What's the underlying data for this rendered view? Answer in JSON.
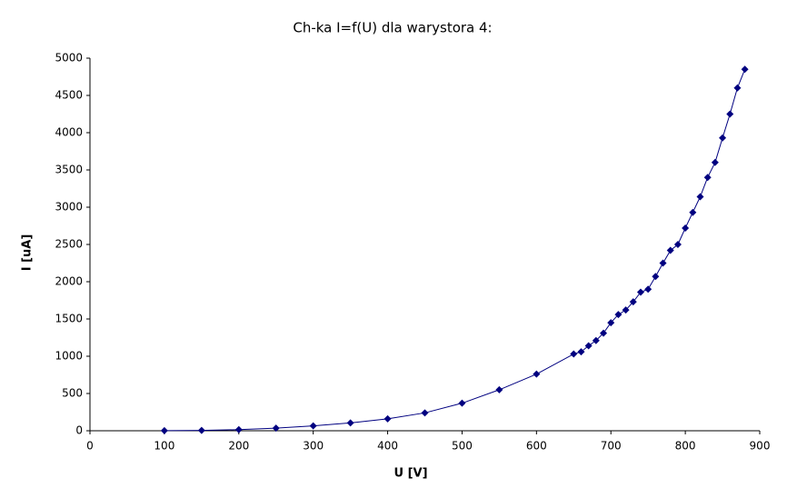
{
  "chart_data": {
    "type": "scatter",
    "title": "Ch-ka I=f(U) dla warystora 4:",
    "x_label": "U [V]",
    "y_label": "I [uA]",
    "xlim": [
      0,
      900
    ],
    "xticks": [
      0,
      100,
      200,
      300,
      400,
      500,
      600,
      700,
      800,
      900
    ],
    "ylim": [
      0,
      5000
    ],
    "yticks": [
      0,
      500,
      1000,
      1500,
      2000,
      2500,
      3000,
      3500,
      4000,
      4500,
      5000
    ],
    "grid": false,
    "series": [
      {
        "color": "#000080",
        "x": [
          100,
          150,
          200,
          250,
          300,
          350,
          400,
          450,
          500,
          550,
          600,
          650,
          660,
          670,
          680,
          690,
          700,
          710,
          720,
          730,
          740,
          750,
          760,
          770,
          780,
          790,
          800,
          810,
          820,
          830,
          840,
          850,
          860,
          870,
          880
        ],
        "values": [
          2,
          5,
          15,
          35,
          65,
          105,
          160,
          240,
          370,
          550,
          760,
          1030,
          1060,
          1140,
          1210,
          1310,
          1450,
          1560,
          1620,
          1730,
          1860,
          1900,
          2070,
          2250,
          2420,
          2500,
          2720,
          2930,
          3140,
          3400,
          3600,
          3930,
          4250,
          4600,
          4850
        ]
      }
    ]
  }
}
